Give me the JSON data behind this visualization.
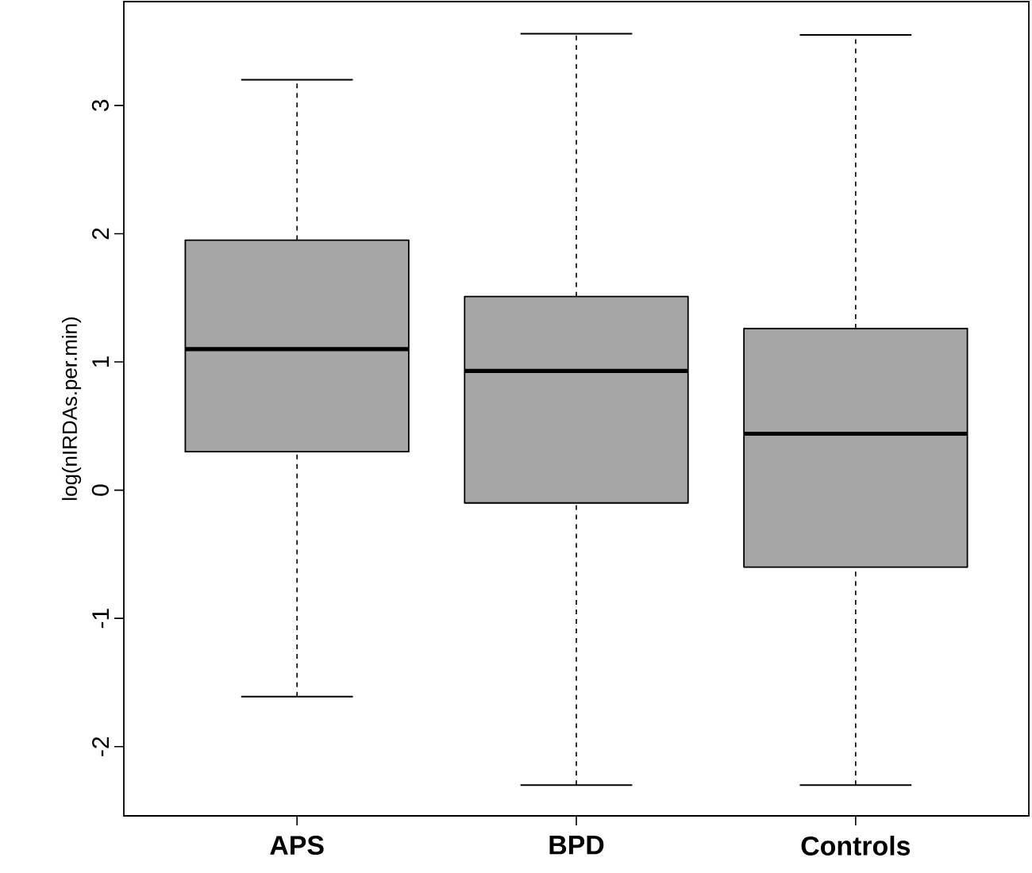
{
  "chart_data": {
    "type": "box",
    "ylabel": "log(nIRDAs.per.min)",
    "categories": [
      "APS",
      "BPD",
      "Controls"
    ],
    "boxes": [
      {
        "low": -1.61,
        "q1": 0.3,
        "median": 1.1,
        "q3": 1.95,
        "high": 3.2
      },
      {
        "low": -2.3,
        "q1": -0.1,
        "median": 0.93,
        "q3": 1.51,
        "high": 3.56
      },
      {
        "low": -2.3,
        "q1": -0.6,
        "median": 0.44,
        "q3": 1.26,
        "high": 3.55
      }
    ],
    "color": "#a6a6a6",
    "ylim": [
      -2.54,
      3.81
    ],
    "yticks": [
      -2,
      -1,
      0,
      1,
      2,
      3
    ],
    "grid": false
  }
}
